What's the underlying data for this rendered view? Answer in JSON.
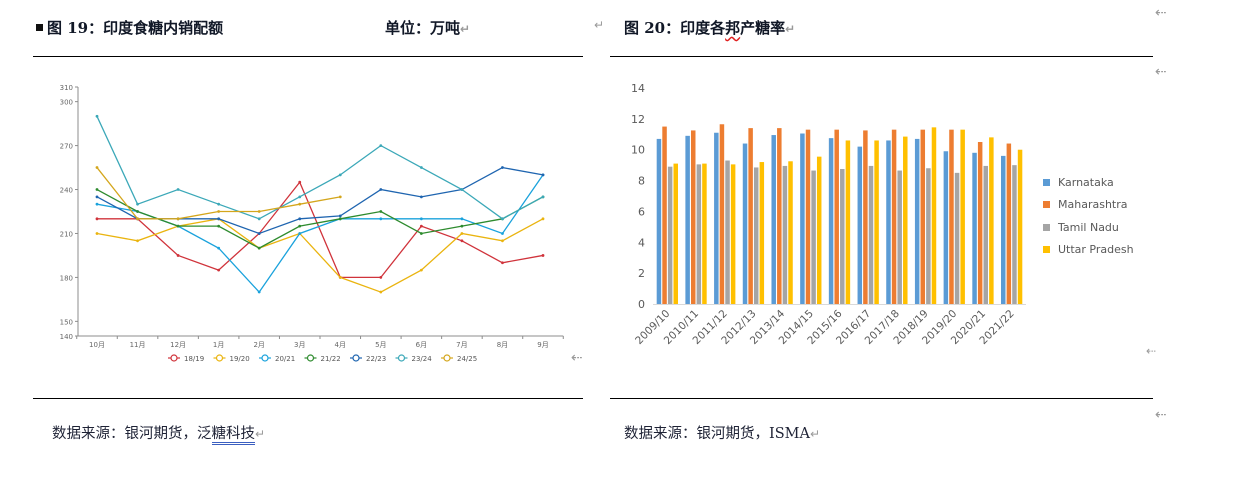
{
  "fig19": {
    "title": "图 19：印度食糖内销配额",
    "unit": "单位：万吨",
    "source_prefix": "数据来源：银河期货，泛",
    "source_linked": "糖科技"
  },
  "fig20": {
    "title_prefix": "图 20：印度各",
    "title_squiggle": "邦",
    "title_suffix": "产糖率",
    "source": "数据来源：银河期货，ISMA"
  },
  "marks": {
    "paragraph": "↵",
    "arrow": "⇠"
  },
  "colors": {
    "18/19": "#d0333b",
    "19/20": "#eab40f",
    "20/21": "#1aa2dc",
    "21/22": "#2e8b2e",
    "22/23": "#1f65b0",
    "23/24": "#3ba8b8",
    "24/25": "#d4a61c",
    "Karnataka": "#5b9bd5",
    "Maharashtra": "#ed7d31",
    "Tamil Nadu": "#a5a5a5",
    "Uttar Pradesh": "#ffc000"
  },
  "chart_data": [
    {
      "type": "line",
      "title": "印度食糖内销配额",
      "xlabel": "",
      "ylabel": "万吨",
      "ylim": [
        140,
        310
      ],
      "yticks": [
        140,
        150,
        180,
        210,
        240,
        270,
        300,
        310
      ],
      "categories": [
        "10月",
        "11月",
        "12月",
        "1月",
        "2月",
        "3月",
        "4月",
        "5月",
        "6月",
        "7月",
        "8月",
        "9月"
      ],
      "legend_position": "bottom",
      "series": [
        {
          "name": "18/19",
          "values": [
            220,
            220,
            195,
            185,
            210,
            245,
            180,
            180,
            215,
            205,
            190,
            195
          ]
        },
        {
          "name": "19/20",
          "values": [
            210,
            205,
            215,
            220,
            200,
            210,
            180,
            170,
            185,
            210,
            205,
            220
          ]
        },
        {
          "name": "20/21",
          "values": [
            230,
            225,
            215,
            200,
            170,
            210,
            220,
            220,
            220,
            220,
            210,
            250
          ]
        },
        {
          "name": "21/22",
          "values": [
            240,
            225,
            215,
            215,
            200,
            215,
            220,
            225,
            210,
            215,
            220,
            235
          ]
        },
        {
          "name": "22/23",
          "values": [
            235,
            220,
            220,
            220,
            210,
            220,
            222,
            240,
            235,
            240,
            255,
            250
          ]
        },
        {
          "name": "23/24",
          "values": [
            290,
            230,
            240,
            230,
            220,
            235,
            250,
            270,
            255,
            240,
            220,
            235
          ]
        },
        {
          "name": "24/25",
          "values": [
            255,
            220,
            220,
            225,
            225,
            230,
            235,
            null,
            null,
            null,
            null,
            null
          ]
        }
      ]
    },
    {
      "type": "bar",
      "title": "印度各邦产糖率",
      "xlabel": "",
      "ylabel": "",
      "ylim": [
        0,
        14
      ],
      "yticks": [
        0,
        2,
        4,
        6,
        8,
        10,
        12,
        14
      ],
      "categories": [
        "2009/10",
        "2010/11",
        "2011/12",
        "2012/13",
        "2013/14",
        "2014/15",
        "2015/16",
        "2016/17",
        "2017/18",
        "2018/19",
        "2019/20",
        "2020/21",
        "2021/22"
      ],
      "legend_position": "right",
      "series": [
        {
          "name": "Karnataka",
          "values": [
            10.7,
            10.9,
            11.1,
            10.4,
            10.95,
            11.05,
            10.75,
            10.2,
            10.6,
            10.7,
            9.9,
            9.8,
            9.6
          ]
        },
        {
          "name": "Maharashtra",
          "values": [
            11.5,
            11.25,
            11.65,
            11.4,
            11.4,
            11.3,
            11.3,
            11.25,
            11.3,
            11.3,
            11.3,
            10.5,
            10.4
          ]
        },
        {
          "name": "Tamil Nadu",
          "values": [
            8.9,
            9.05,
            9.3,
            8.85,
            8.95,
            8.65,
            8.75,
            8.95,
            8.65,
            8.8,
            8.5,
            8.95,
            9.0
          ]
        },
        {
          "name": "Uttar Pradesh",
          "values": [
            9.1,
            9.1,
            9.05,
            9.2,
            9.25,
            9.55,
            10.6,
            10.6,
            10.85,
            11.45,
            11.3,
            10.8,
            10.0
          ]
        }
      ]
    }
  ]
}
